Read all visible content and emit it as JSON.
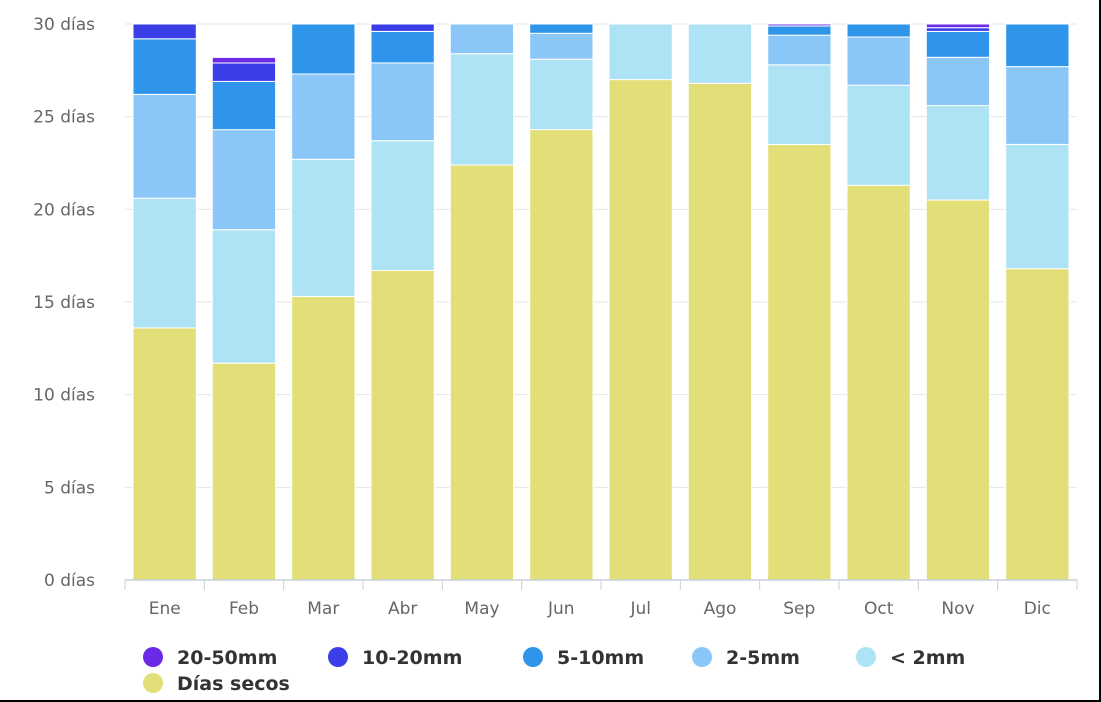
{
  "chart_data": {
    "type": "bar",
    "stacked": true,
    "title": "",
    "xlabel": "",
    "ylabel": "",
    "ylim": [
      0,
      30
    ],
    "y_ticks": [
      "0 días",
      "5 días",
      "10 días",
      "15 días",
      "20 días",
      "25 días",
      "30 días"
    ],
    "categories": [
      "Ene",
      "Feb",
      "Mar",
      "Abr",
      "May",
      "Jun",
      "Jul",
      "Ago",
      "Sep",
      "Oct",
      "Nov",
      "Dic"
    ],
    "grid": true,
    "legend_position": "bottom",
    "series": [
      {
        "name": "Días secos",
        "color": "#e3df78",
        "values": [
          13.6,
          11.7,
          15.3,
          16.7,
          22.4,
          24.3,
          27.0,
          26.8,
          23.5,
          21.3,
          20.5,
          16.8
        ]
      },
      {
        "name": "< 2mm",
        "color": "#ade3f5",
        "values": [
          7.0,
          7.2,
          7.4,
          7.0,
          6.0,
          3.8,
          3.0,
          3.2,
          4.3,
          5.4,
          5.1,
          6.7
        ]
      },
      {
        "name": "2-5mm",
        "color": "#8ac6f8",
        "values": [
          5.6,
          5.4,
          4.6,
          4.2,
          1.6,
          1.4,
          0.0,
          0.0,
          1.6,
          2.6,
          2.6,
          4.2
        ]
      },
      {
        "name": "5-10mm",
        "color": "#2f95ea",
        "values": [
          3.0,
          2.6,
          2.7,
          1.7,
          0.0,
          0.5,
          0.0,
          0.0,
          0.5,
          0.7,
          1.4,
          2.3
        ]
      },
      {
        "name": "10-20mm",
        "color": "#3b3ee6",
        "values": [
          0.8,
          1.0,
          0.0,
          0.4,
          0.0,
          0.0,
          0.0,
          0.0,
          0.0,
          0.0,
          0.2,
          0.0
        ]
      },
      {
        "name": "20-50mm",
        "color": "#6a2ae6",
        "values": [
          0.0,
          0.3,
          0.0,
          0.0,
          0.0,
          0.0,
          0.0,
          0.0,
          0.1,
          0.0,
          0.2,
          0.0
        ]
      }
    ],
    "legend_order": [
      "20-50mm",
      "10-20mm",
      "5-10mm",
      "2-5mm",
      "< 2mm",
      "Días secos"
    ]
  }
}
